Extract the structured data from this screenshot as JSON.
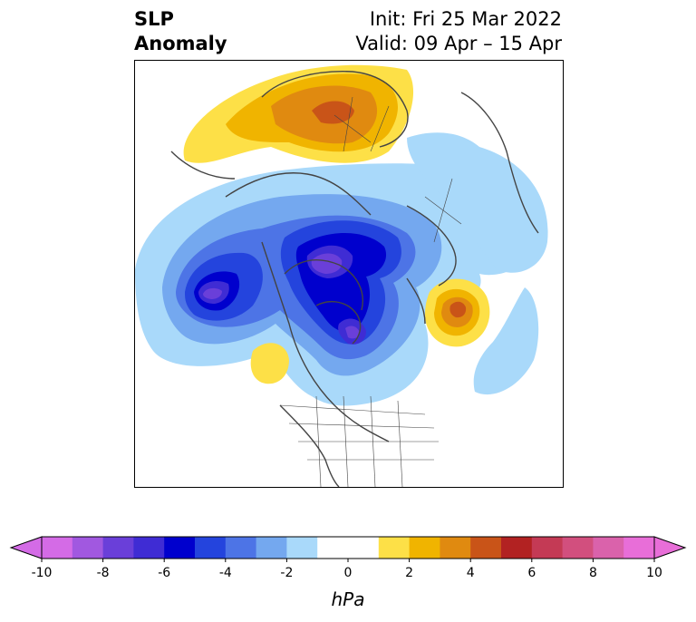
{
  "title": {
    "field": "SLP",
    "field2": "Anomaly",
    "init": "Init: Fri 25 Mar 2022",
    "valid": "Valid: 09 Apr – 15 Apr"
  },
  "colorbar": {
    "unit": "hPa",
    "ticks": [
      "-10",
      "-8",
      "-6",
      "-4",
      "-2",
      "0",
      "2",
      "4",
      "6",
      "8",
      "10"
    ],
    "colors": [
      "#d46be6",
      "#a158e0",
      "#6a3fd9",
      "#3f2cd4",
      "#0000cd",
      "#2444dd",
      "#4d74e6",
      "#74a8ef",
      "#a9d9fa",
      "#ffffff",
      "#ffffff",
      "#fde047",
      "#f0b400",
      "#e08a10",
      "#c95418",
      "#b22222",
      "#c43a55",
      "#d24f7e",
      "#da62ab",
      "#e86ed8"
    ]
  }
}
